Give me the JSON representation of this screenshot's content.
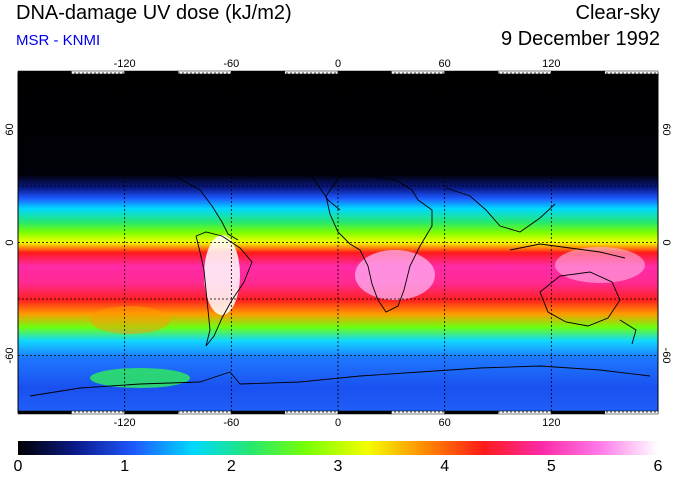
{
  "header": {
    "title": "DNA-damage UV dose (kJ/m2)",
    "source": "MSR - KNMI",
    "sky_condition": "Clear-sky",
    "date": "9 December 1992"
  },
  "map": {
    "projection": "equirectangular",
    "lon_range": [
      -180,
      180
    ],
    "lat_range": [
      -90,
      90
    ],
    "lon_ticks": [
      "-120",
      "-60",
      "0",
      "60",
      "120"
    ],
    "lat_ticks": [
      "60",
      "0",
      "-60"
    ],
    "colors": {
      "ocean_frame": "#000000",
      "grid": "#000000",
      "coast": "#000000"
    }
  },
  "colorbar": {
    "min": 0,
    "max": 6,
    "labels": [
      "0",
      "1",
      "2",
      "3",
      "4",
      "5",
      "6"
    ],
    "stops": [
      "#000000",
      "#0a1a8a",
      "#1e5aff",
      "#00d8ff",
      "#25e870",
      "#7cff00",
      "#f4ff00",
      "#ff8a00",
      "#ff1a1a",
      "#ff2aa8",
      "#ff7ae8",
      "#ffffff"
    ]
  }
}
